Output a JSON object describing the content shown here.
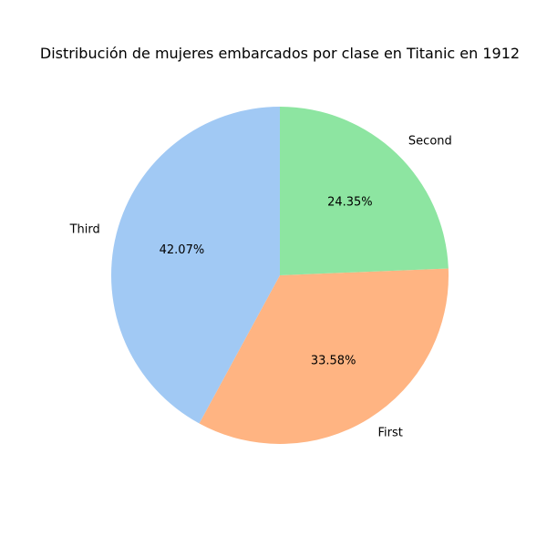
{
  "chart_data": {
    "type": "pie",
    "title": "Distribución de mujeres embarcados por clase en Titanic en 1912",
    "start_angle_deg": 90,
    "direction": "counterclockwise",
    "slices": [
      {
        "label": "Third",
        "value": 42.07,
        "pct_label": "42.07%",
        "color": "#a1c9f4"
      },
      {
        "label": "First",
        "value": 33.58,
        "pct_label": "33.58%",
        "color": "#ffb482"
      },
      {
        "label": "Second",
        "value": 24.35,
        "pct_label": "24.35%",
        "color": "#8de5a1"
      }
    ]
  }
}
